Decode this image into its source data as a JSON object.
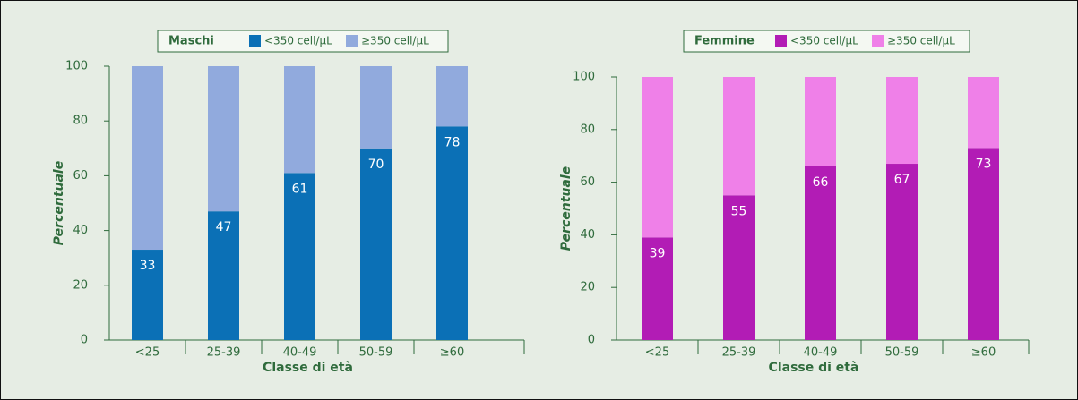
{
  "chart_data": [
    {
      "type": "stacked-bar",
      "legend_title": "Maschi",
      "xlabel": "Classe di età",
      "ylabel": "Percentuale",
      "categories": [
        "<25",
        "25-39",
        "40-49",
        "50-59",
        "≥60"
      ],
      "series": [
        {
          "name": "<350 cell/μL",
          "color": "#0b70b6",
          "values": [
            33,
            47,
            61,
            70,
            78
          ]
        },
        {
          "name": "≥350 cell/μL",
          "color": "#91aadd",
          "values": [
            67,
            53,
            39,
            30,
            22
          ]
        }
      ],
      "ylim": [
        0,
        100
      ],
      "yticks": [
        0,
        20,
        40,
        60,
        80,
        100
      ]
    },
    {
      "type": "stacked-bar",
      "legend_title": "Femmine",
      "xlabel": "Classe di età",
      "ylabel": "Percentuale",
      "categories": [
        "<25",
        "25-39",
        "40-49",
        "50-59",
        "≥60"
      ],
      "series": [
        {
          "name": "<350 cell/μL",
          "color": "#b21cb5",
          "values": [
            39,
            55,
            66,
            67,
            73
          ]
        },
        {
          "name": "≥350 cell/μL",
          "color": "#ef80e8",
          "values": [
            61,
            45,
            34,
            33,
            27
          ]
        }
      ],
      "ylim": [
        0,
        100
      ],
      "yticks": [
        0,
        20,
        40,
        60,
        80,
        100
      ]
    }
  ]
}
